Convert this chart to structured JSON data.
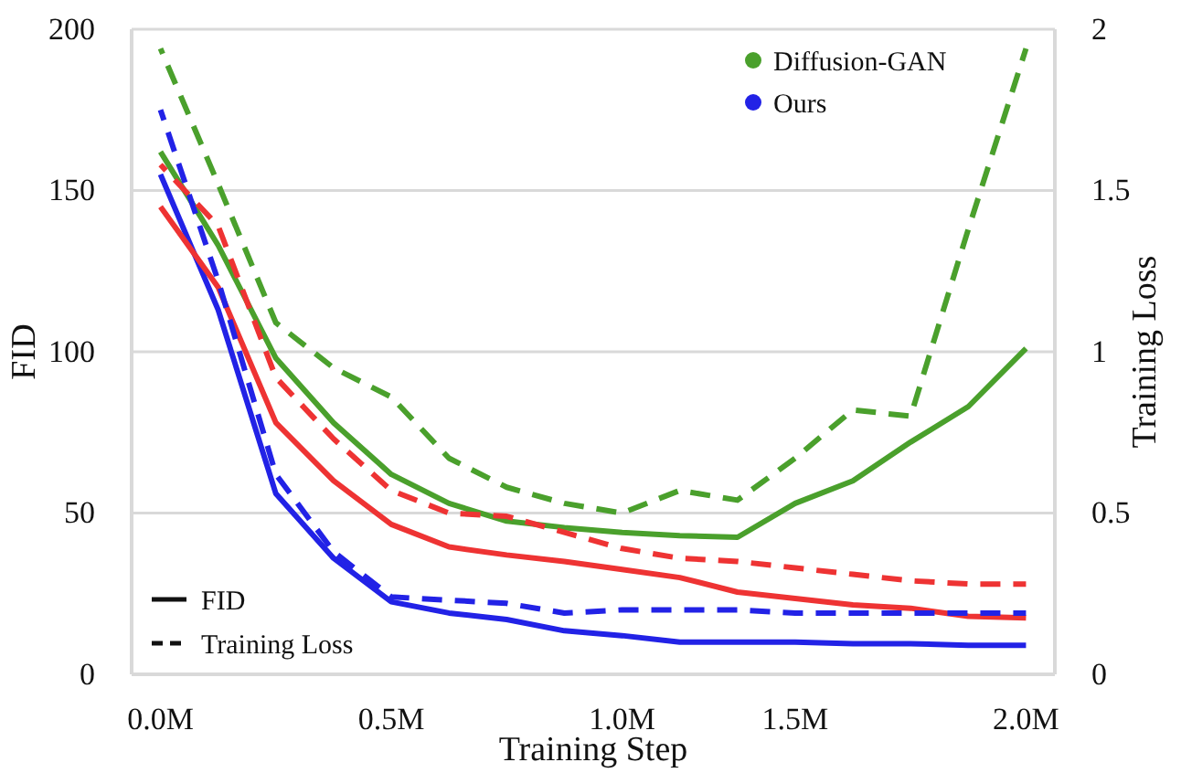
{
  "chart_data": {
    "type": "line",
    "xlabel": "Training Step",
    "ylabel": "FID",
    "y2label": "Training Loss",
    "categories": [
      "0.0M",
      null,
      null,
      null,
      "0.5M",
      null,
      null,
      null,
      "1.0M",
      null,
      null,
      "1.5M",
      null,
      null,
      null,
      "2.0M"
    ],
    "ylim": [
      0,
      200
    ],
    "yticks": [
      0,
      50,
      100,
      150,
      200
    ],
    "y2lim": [
      0,
      2
    ],
    "y2ticks": [
      0,
      0.5,
      1,
      1.5,
      2
    ],
    "grid": "y",
    "legend": "top right",
    "marker": "none",
    "annotations": [
      "FID",
      "Training Loss"
    ],
    "series": [
      {
        "name": "Diffusion-GAN",
        "color": "#4aa02c",
        "line_style": "solid",
        "values": [
          162,
          133,
          98,
          78,
          62,
          53,
          47.5,
          45.5,
          44,
          43,
          42.5,
          53,
          60,
          72,
          83,
          101
        ]
      },
      {
        "name": "Ours",
        "color": "#2222e6",
        "line_style": "solid",
        "values": [
          155,
          113,
          56,
          36,
          22.5,
          19,
          17,
          13.5,
          12,
          10,
          10,
          10,
          9.5,
          9.5,
          9,
          9
        ]
      },
      {
        "color": "#ee3333",
        "line_style": "solid",
        "values": [
          145,
          120,
          78,
          60,
          46.5,
          39.5,
          37,
          35,
          32.5,
          30,
          25.5,
          23.5,
          21.5,
          20.5,
          18,
          17.5
        ]
      },
      {
        "color": "#4aa02c",
        "line_style": "dashed",
        "axis": "y2",
        "values": [
          1.94,
          1.52,
          1.09,
          0.95,
          0.86,
          0.67,
          0.58,
          0.53,
          0.5,
          0.57,
          0.54,
          0.67,
          0.82,
          0.8,
          1.38,
          1.94
        ]
      },
      {
        "color": "#2222e6",
        "line_style": "dashed",
        "axis": "y2",
        "values": [
          1.75,
          1.22,
          0.62,
          0.38,
          0.24,
          0.23,
          0.22,
          0.19,
          0.2,
          0.2,
          0.2,
          0.19,
          0.19,
          0.19,
          0.19,
          0.19
        ]
      },
      {
        "color": "#ee3333",
        "line_style": "dashed",
        "axis": "y2",
        "values": [
          1.58,
          1.39,
          0.92,
          0.73,
          0.57,
          0.5,
          0.49,
          0.44,
          0.39,
          0.36,
          0.35,
          0.33,
          0.31,
          0.29,
          0.28,
          0.28
        ]
      }
    ]
  }
}
